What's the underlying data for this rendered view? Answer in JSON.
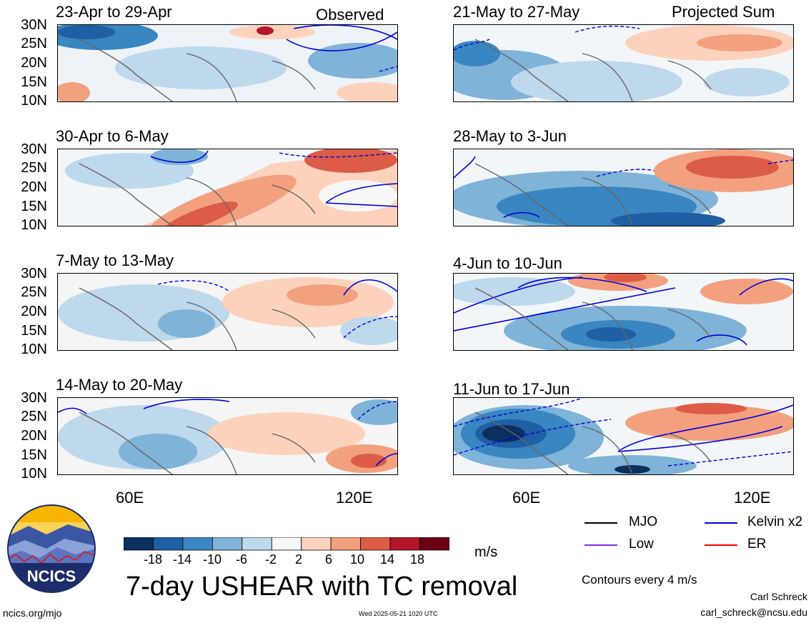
{
  "panels": [
    {
      "title": "23-Apr to 29-Apr",
      "corner": "Observed"
    },
    {
      "title": "30-Apr to 6-May",
      "corner": ""
    },
    {
      "title": "7-May to 13-May",
      "corner": ""
    },
    {
      "title": "14-May to 20-May",
      "corner": ""
    },
    {
      "title": "21-May to 27-May",
      "corner": "Projected Sum"
    },
    {
      "title": "28-May to 3-Jun",
      "corner": ""
    },
    {
      "title": "4-Jun to 10-Jun",
      "corner": ""
    },
    {
      "title": "11-Jun to 17-Jun",
      "corner": ""
    }
  ],
  "lat_labels": [
    "30N",
    "25N",
    "20N",
    "15N",
    "10N"
  ],
  "lon_labels": [
    "60E",
    "120E"
  ],
  "colorbar": {
    "ticks": [
      "-18",
      "-14",
      "-10",
      "-6",
      "-2",
      "2",
      "6",
      "10",
      "14",
      "18"
    ],
    "colors": [
      "#0b2f5e",
      "#1f5fa3",
      "#3a86c0",
      "#7fb3d8",
      "#bed8ec",
      "#f7f7f7",
      "#fcd2bd",
      "#f3a07f",
      "#dc5c47",
      "#b3162a",
      "#6b0015"
    ],
    "units": "m/s"
  },
  "title": "7-day USHEAR with TC removal",
  "legend": [
    {
      "label": "MJO",
      "color": "#000000"
    },
    {
      "label": "Kelvin x2",
      "color": "#0000dd"
    },
    {
      "label": "Low",
      "color": "#8a2be2"
    },
    {
      "label": "ER",
      "color": "#ff0000"
    }
  ],
  "contour_note": "Contours every 4 m/s",
  "logo_text": "NCICS",
  "author": "Carl Schreck",
  "email": "carl_schreck@ncsu.edu",
  "website": "ncics.org/mjo",
  "timestamp": "Wed 2025-05-21 1020 UTC"
}
